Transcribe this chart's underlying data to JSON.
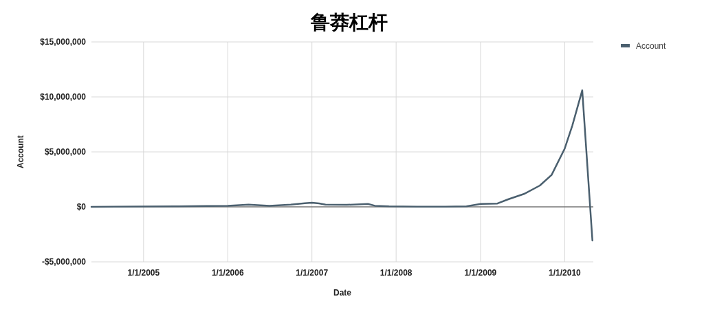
{
  "chart_data": {
    "type": "line",
    "title": "鲁莽杠杆",
    "xlabel": "Date",
    "ylabel": "Account",
    "legend": "top right",
    "grid": true,
    "line_style": "solid",
    "x": [
      "2004-05-20",
      "2004-09-01",
      "2005-01-01",
      "2005-06-01",
      "2005-10-01",
      "2006-01-01",
      "2006-04-01",
      "2006-07-01",
      "2006-10-01",
      "2006-12-01",
      "2007-01-01",
      "2007-02-01",
      "2007-03-01",
      "2007-06-01",
      "2007-09-01",
      "2007-10-01",
      "2007-12-01",
      "2008-04-01",
      "2008-08-01",
      "2008-11-01",
      "2009-01-01",
      "2009-03-15",
      "2009-05-01",
      "2009-07-08",
      "2009-09-15",
      "2009-11-05",
      "2010-01-01",
      "2010-02-03",
      "2010-03-18",
      "2010-05-01"
    ],
    "series": [
      {
        "name": "Account",
        "color": "#4a5f6e",
        "values": [
          0,
          20000,
          30000,
          50000,
          80000,
          100000,
          200000,
          100000,
          200000,
          330000,
          370000,
          310000,
          200000,
          180000,
          270000,
          100000,
          50000,
          20000,
          20000,
          50000,
          270000,
          300000,
          690000,
          1170000,
          1940000,
          2900000,
          5300000,
          7400000,
          10600000,
          -3060000
        ]
      }
    ],
    "xlim": [
      "2004-05-20",
      "2010-05-05"
    ],
    "xticks": [
      {
        "value": "2005-01-01",
        "label": "1/1/2005"
      },
      {
        "value": "2006-01-01",
        "label": "1/1/2006"
      },
      {
        "value": "2007-01-01",
        "label": "1/1/2007"
      },
      {
        "value": "2008-01-01",
        "label": "1/1/2008"
      },
      {
        "value": "2009-01-01",
        "label": "1/1/2009"
      },
      {
        "value": "2010-01-01",
        "label": "1/1/2010"
      }
    ],
    "ylim": [
      -5000000,
      15000000
    ],
    "yticks": [
      {
        "value": -5000000,
        "label": "-$5,000,000"
      },
      {
        "value": 0,
        "label": "$0"
      },
      {
        "value": 5000000,
        "label": "$5,000,000"
      },
      {
        "value": 10000000,
        "label": "$10,000,000"
      },
      {
        "value": 15000000,
        "label": "$15,000,000"
      }
    ]
  }
}
